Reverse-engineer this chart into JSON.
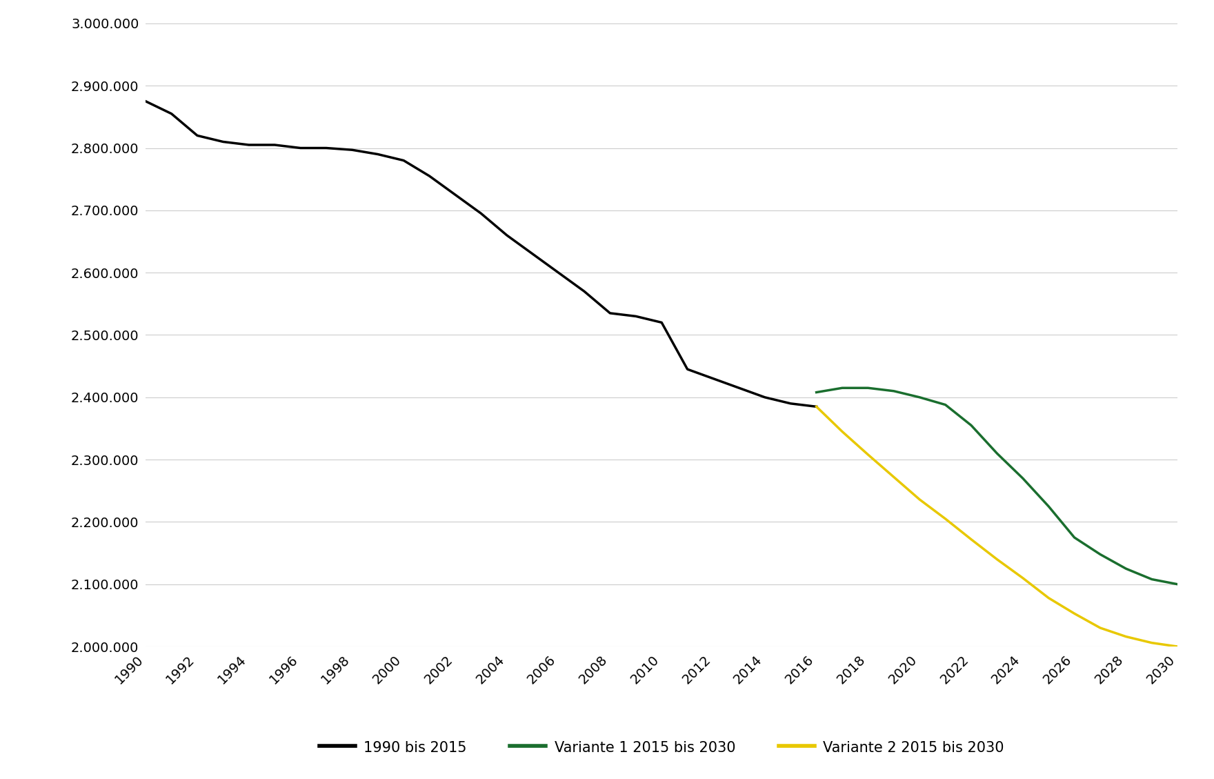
{
  "series_black": {
    "label": "1990 bis 2015",
    "color": "#000000",
    "x": [
      1990,
      1991,
      1992,
      1993,
      1994,
      1995,
      1996,
      1997,
      1998,
      1999,
      2000,
      2001,
      2002,
      2003,
      2004,
      2005,
      2006,
      2007,
      2008,
      2009,
      2010,
      2011,
      2012,
      2013,
      2014,
      2015,
      2016
    ],
    "y": [
      2875000,
      2855000,
      2820000,
      2810000,
      2805000,
      2805000,
      2800000,
      2800000,
      2797000,
      2790000,
      2780000,
      2755000,
      2725000,
      2695000,
      2660000,
      2630000,
      2600000,
      2570000,
      2535000,
      2530000,
      2520000,
      2445000,
      2430000,
      2415000,
      2400000,
      2390000,
      2385000
    ]
  },
  "series_green": {
    "label": "Variante 1 2015 bis 2030",
    "color": "#1a6e2e",
    "x": [
      2016,
      2017,
      2018,
      2019,
      2020,
      2021,
      2022,
      2023,
      2024,
      2025,
      2026,
      2027,
      2028,
      2029,
      2030
    ],
    "y": [
      2408000,
      2415000,
      2415000,
      2410000,
      2400000,
      2388000,
      2355000,
      2310000,
      2270000,
      2225000,
      2175000,
      2148000,
      2125000,
      2108000,
      2100000
    ]
  },
  "series_yellow": {
    "label": "Variante 2 2015 bis 2030",
    "color": "#e8c800",
    "x": [
      2016,
      2017,
      2018,
      2019,
      2020,
      2021,
      2022,
      2023,
      2024,
      2025,
      2026,
      2027,
      2028,
      2029,
      2030
    ],
    "y": [
      2385000,
      2345000,
      2308000,
      2272000,
      2236000,
      2205000,
      2172000,
      2140000,
      2110000,
      2078000,
      2053000,
      2030000,
      2016000,
      2006000,
      2000000
    ]
  },
  "xlim": [
    1990,
    2030
  ],
  "ylim": [
    2000000,
    3000000
  ],
  "yticks": [
    2000000,
    2100000,
    2200000,
    2300000,
    2400000,
    2500000,
    2600000,
    2700000,
    2800000,
    2900000,
    3000000
  ],
  "xticks": [
    1990,
    1992,
    1994,
    1996,
    1998,
    2000,
    2002,
    2004,
    2006,
    2008,
    2010,
    2012,
    2014,
    2016,
    2018,
    2020,
    2022,
    2024,
    2026,
    2028,
    2030
  ],
  "linewidth": 2.5,
  "background_color": "#ffffff",
  "grid_color": "#cccccc",
  "tick_fontsize": 14,
  "legend_fontsize": 15
}
